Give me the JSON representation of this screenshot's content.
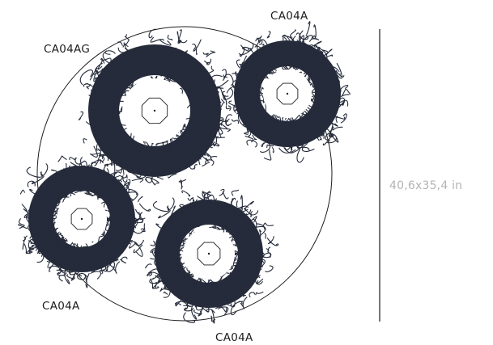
{
  "colors": {
    "tuft": "#252b3a",
    "outline": "#1c1c1c",
    "dimension_text": "#b4b4b4",
    "background": "#ffffff"
  },
  "dimension": {
    "text": "40,6x35,4 in"
  },
  "wreaths": [
    {
      "name": "wreath-ca04ag",
      "label": "CA04AG"
    },
    {
      "name": "wreath-ca04a-top-right",
      "label": "CA04A"
    },
    {
      "name": "wreath-ca04a-left",
      "label": "CA04A"
    },
    {
      "name": "wreath-ca04a-bottom",
      "label": "CA04A"
    }
  ]
}
